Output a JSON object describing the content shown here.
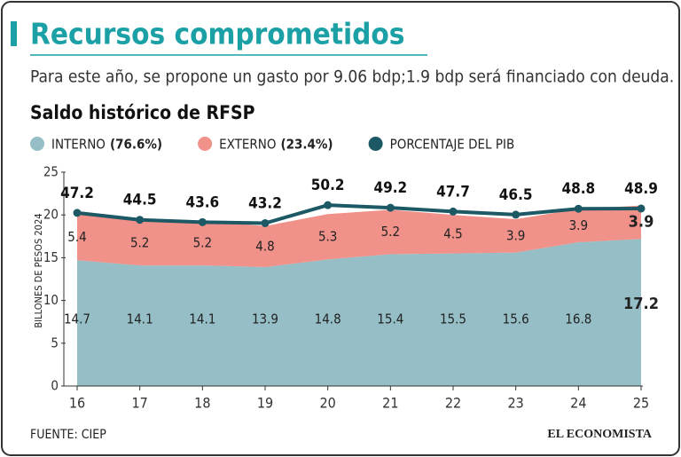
{
  "chart_data": {
    "type": "stacked_area_line",
    "title": "Recursos comprometidos",
    "subtitle": "Para este año, se propone un gasto por 9.06 bdp;1.9 bdp será financiado con deuda.",
    "chart_title": "Saldo histórico de RFSP",
    "y_label": "BILLONES DE PESOS 2024",
    "source": "FUENTE: CIEP",
    "logo": "EL ECONOMISTA",
    "categories": [
      "16",
      "17",
      "18",
      "19",
      "20",
      "21",
      "22",
      "23",
      "24",
      "25"
    ],
    "ylim": [
      0,
      25
    ],
    "yticks": [
      0,
      5,
      10,
      15,
      20,
      25
    ],
    "y2lim": [
      -20,
      63
    ],
    "series": [
      {
        "name": "INTERNO",
        "share": "(76.6%)",
        "color": "#95bec6",
        "values": [
          14.7,
          14.1,
          14.1,
          13.9,
          14.8,
          15.4,
          15.5,
          15.6,
          16.8,
          17.2
        ]
      },
      {
        "name": "EXTERNO",
        "share": "(23.4%)",
        "color": "#f0918a",
        "values": [
          5.4,
          5.2,
          5.2,
          4.8,
          5.3,
          5.2,
          4.5,
          3.9,
          3.9,
          3.9
        ]
      },
      {
        "name": "PORCENTAJE DEL PIB",
        "color": "#1c5965",
        "axis": "y2",
        "values": [
          47.2,
          44.5,
          43.6,
          43.2,
          50.2,
          49.2,
          47.7,
          46.5,
          48.8,
          48.9
        ]
      }
    ]
  }
}
